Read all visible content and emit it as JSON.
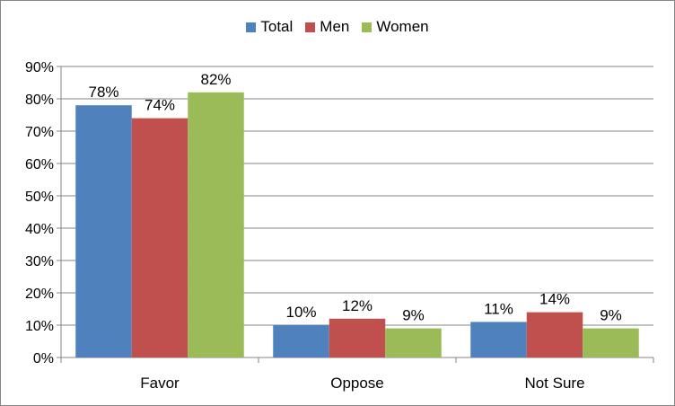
{
  "chart_data": {
    "type": "bar",
    "categories": [
      "Favor",
      "Oppose",
      "Not Sure"
    ],
    "series": [
      {
        "name": "Total",
        "color": "#4F81BD",
        "values": [
          78,
          10,
          11
        ],
        "labels": [
          "78%",
          "10%",
          "11%"
        ]
      },
      {
        "name": "Men",
        "color": "#C0504D",
        "values": [
          74,
          12,
          14
        ],
        "labels": [
          "74%",
          "12%",
          "14%"
        ]
      },
      {
        "name": "Women",
        "color": "#9BBB59",
        "values": [
          82,
          9,
          9
        ],
        "labels": [
          "82%",
          "9%",
          "9%"
        ]
      }
    ],
    "ylim": [
      0,
      90
    ],
    "yticks": [
      0,
      10,
      20,
      30,
      40,
      50,
      60,
      70,
      80,
      90
    ],
    "ytick_labels": [
      "0%",
      "10%",
      "20%",
      "30%",
      "40%",
      "50%",
      "60%",
      "70%",
      "80%",
      "90%"
    ],
    "grid": true,
    "legend": "top-center"
  }
}
